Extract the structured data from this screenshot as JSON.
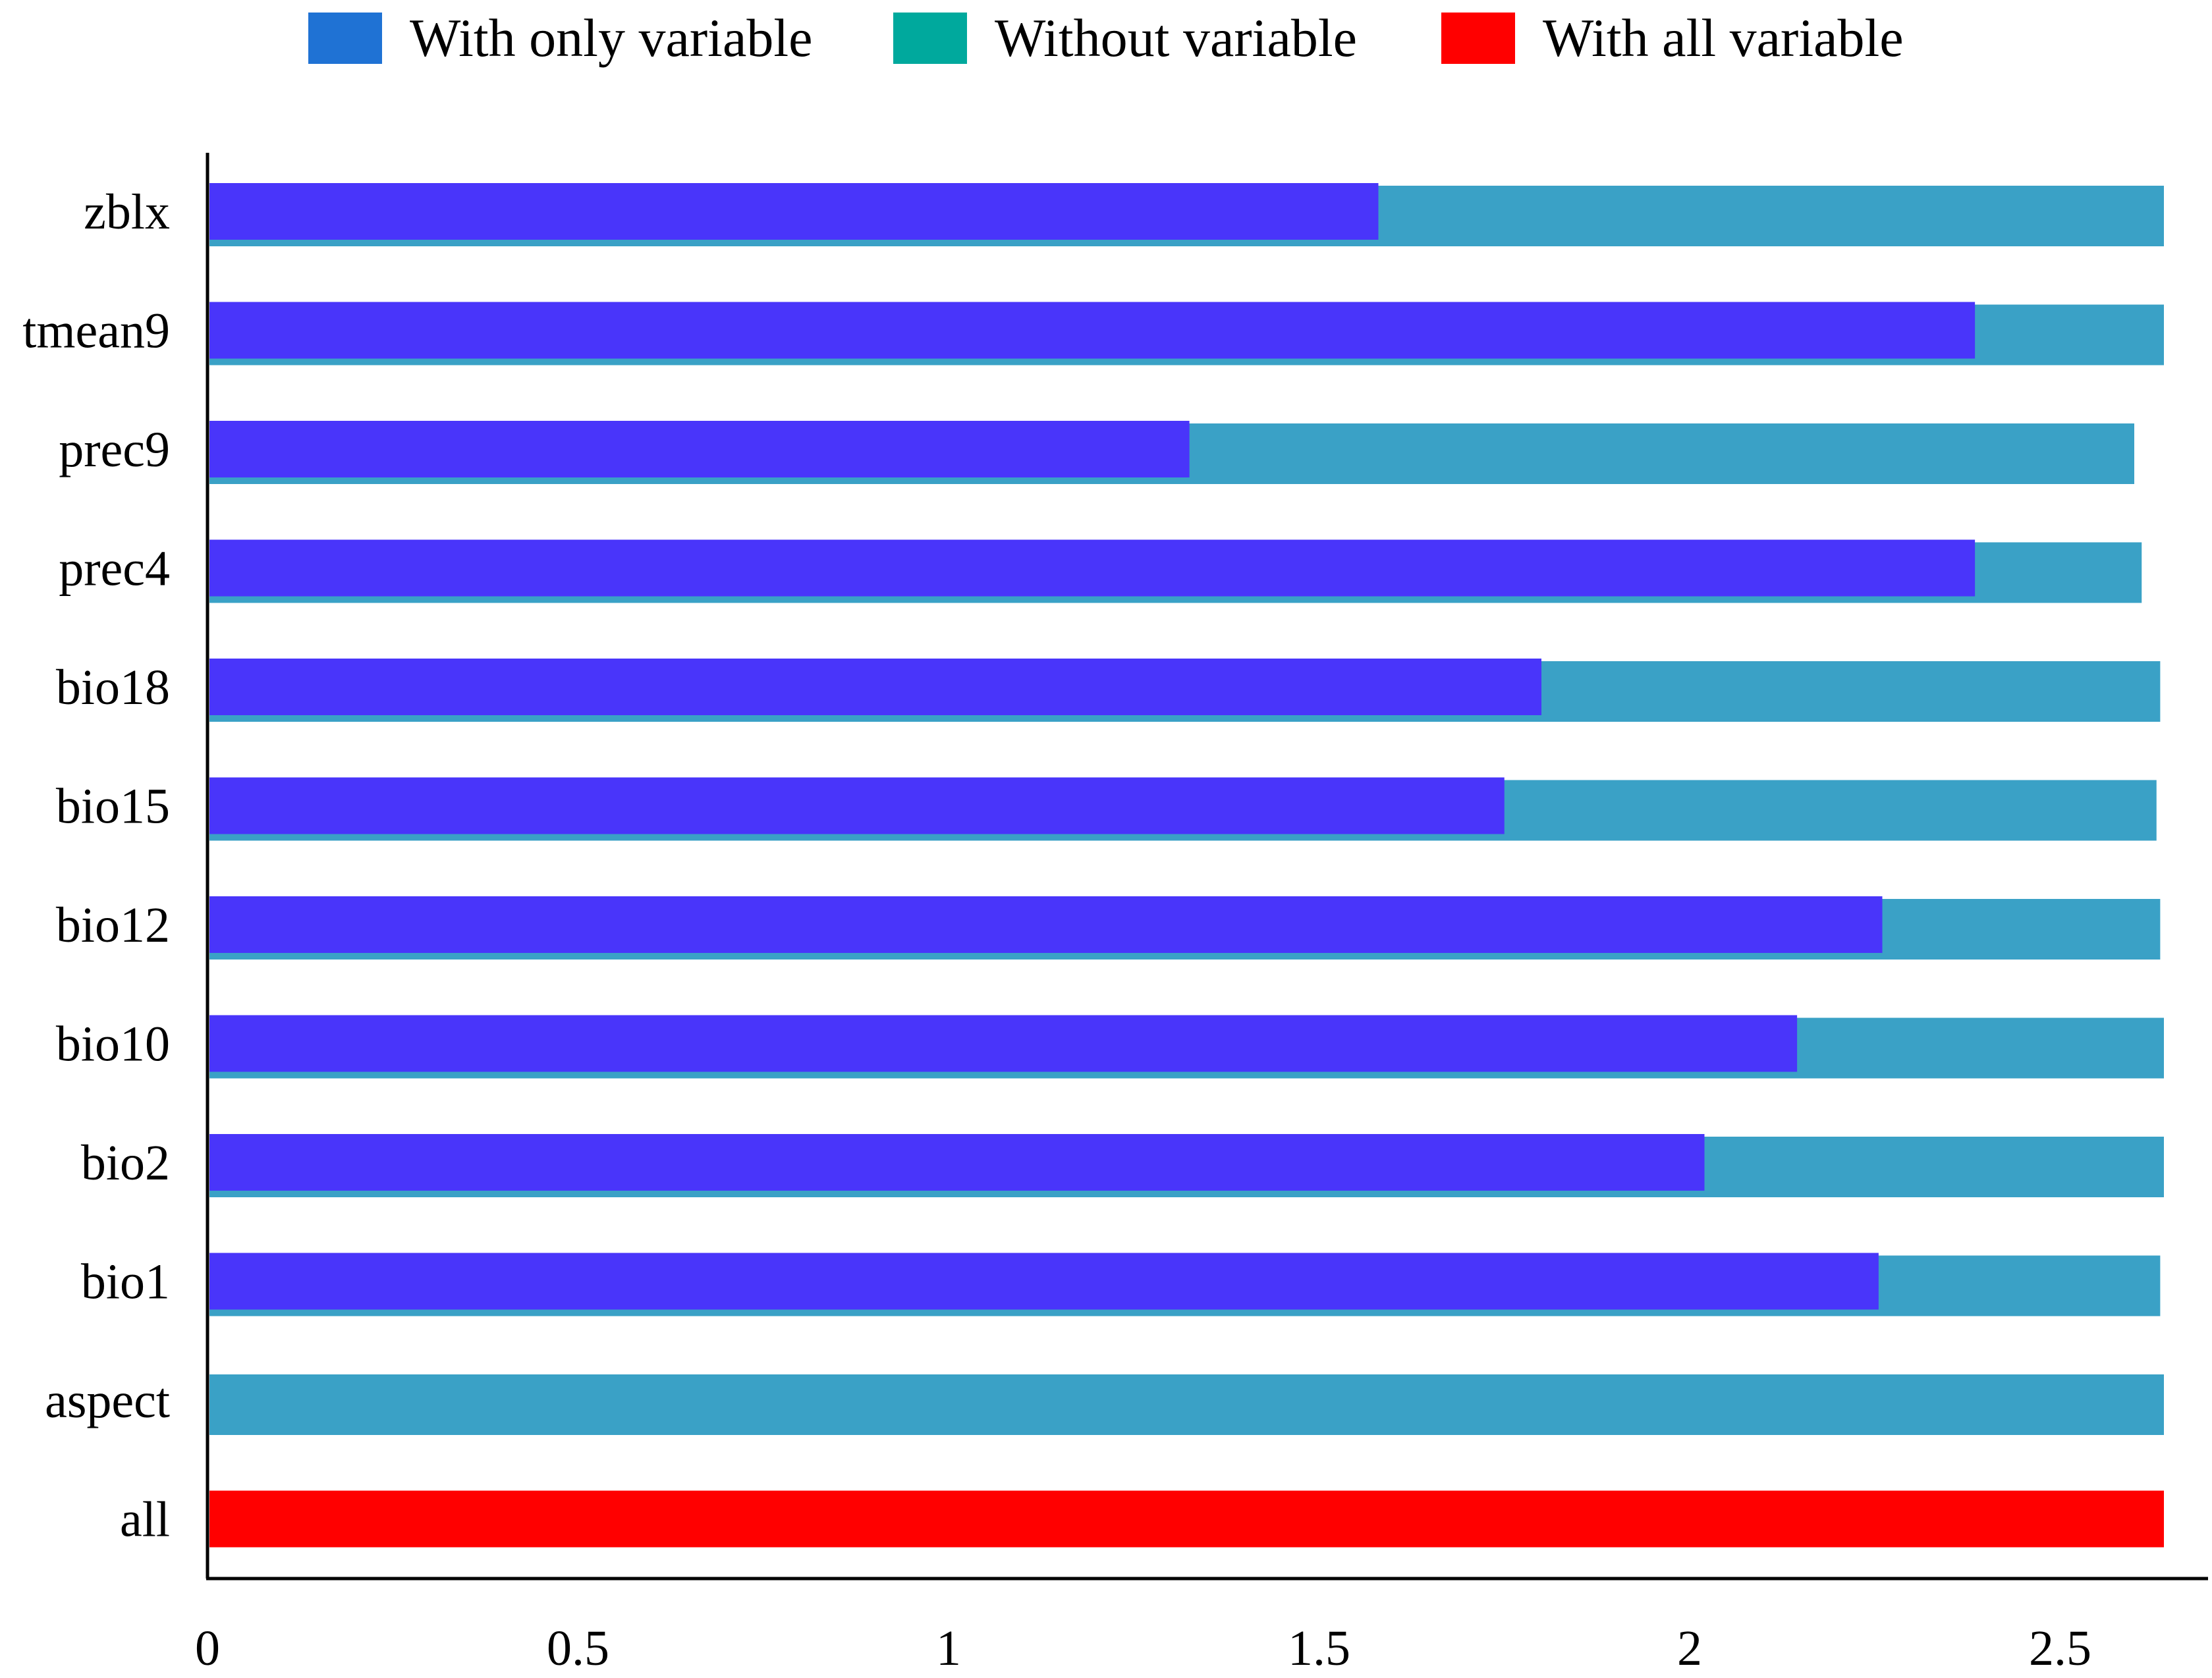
{
  "chart_data": {
    "type": "bar",
    "orientation": "horizontal",
    "stacked": "overlay",
    "categories": [
      "zblx",
      "tmean9",
      "prec9",
      "prec4",
      "bio18",
      "bio15",
      "bio12",
      "bio10",
      "bio2",
      "bio1",
      "aspect",
      "all"
    ],
    "series": [
      {
        "name": "Without variable",
        "color": "#3AA1C6",
        "values": [
          2.64,
          2.64,
          2.6,
          2.61,
          2.635,
          2.63,
          2.635,
          2.64,
          2.64,
          2.635,
          2.64,
          null
        ]
      },
      {
        "name": "With only variable",
        "color": "#4935FA",
        "values": [
          1.58,
          2.385,
          1.325,
          2.385,
          1.8,
          1.75,
          2.26,
          2.145,
          2.02,
          2.255,
          null,
          null
        ]
      },
      {
        "name": "With all variable",
        "color": "#FF0000",
        "values": [
          null,
          null,
          null,
          null,
          null,
          null,
          null,
          null,
          null,
          null,
          null,
          2.64
        ]
      }
    ],
    "xlim": [
      0,
      2.7
    ],
    "xticks": [
      "0",
      "0.5",
      "1",
      "1.5",
      "2",
      "2.5"
    ],
    "title": "",
    "xlabel": "",
    "ylabel": "",
    "grid": false,
    "legend_position": "top"
  },
  "legend": [
    {
      "label": "With only variable",
      "color": "#1F72D4"
    },
    {
      "label": "Without variable",
      "color": "#00A99D"
    },
    {
      "label": "With all variable",
      "color": "#FF0000"
    }
  ]
}
